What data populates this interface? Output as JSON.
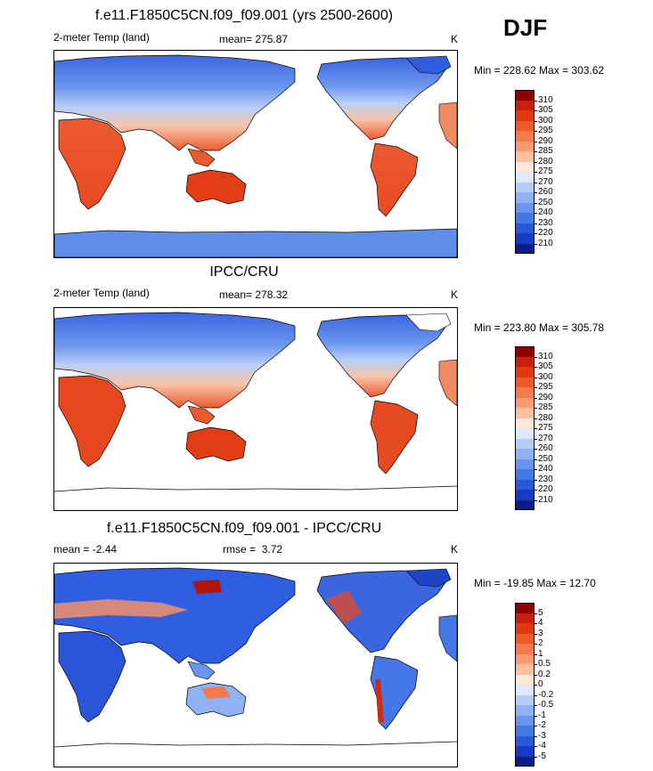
{
  "panels": [
    {
      "title": "f.e11.F1850C5CN.f09_f09.001 (yrs 2500-2600)",
      "variable": "2-meter Temp (land)",
      "stat_label": "mean=",
      "stat_value": "275.87",
      "units": "K",
      "minmax": "Min = 228.62 Max = 303.62",
      "palette": "abs",
      "has_antarctica": true
    },
    {
      "title": "IPCC/CRU",
      "variable": "2-meter Temp (land)",
      "stat_label": "mean=",
      "stat_value": "278.32",
      "units": "K",
      "minmax": "Min = 223.80 Max = 305.78",
      "palette": "abs",
      "has_antarctica": false
    },
    {
      "title": "f.e11.F1850C5CN.f09_f09.001 - IPCC/CRU",
      "variable": "mean =",
      "variable_value": "-2.44",
      "stat_label": "rmse =",
      "stat_value": "3.72",
      "units": "K",
      "minmax": "Min = -19.85 Max =  12.70",
      "palette": "diff",
      "has_antarctica": false
    }
  ],
  "season": "DJF",
  "colorbars": {
    "abs": {
      "ticks": [
        "310",
        "305",
        "300",
        "295",
        "290",
        "285",
        "280",
        "275",
        "270",
        "260",
        "250",
        "240",
        "230",
        "220",
        "210"
      ],
      "colors": [
        "#8b0000",
        "#c8200c",
        "#e03a14",
        "#f05a2a",
        "#f57a4a",
        "#f89a72",
        "#fbbfa0",
        "#fde8d8",
        "#dde8fb",
        "#b4cdf7",
        "#8fb2f2",
        "#6a95ec",
        "#4677e6",
        "#2a58d8",
        "#143bc2",
        "#0a1f8c"
      ]
    },
    "diff": {
      "ticks": [
        "5",
        "4",
        "3",
        "2",
        "1",
        "0.5",
        "0.2",
        "0",
        "-0.2",
        "-0.5",
        "-1",
        "-2",
        "-3",
        "-4",
        "-5"
      ],
      "colors": [
        "#8b0000",
        "#c8200c",
        "#e03a14",
        "#f05a2a",
        "#f57a4a",
        "#f89a72",
        "#fbbfa0",
        "#fde8d8",
        "#dde8fb",
        "#b4cdf7",
        "#8fb2f2",
        "#6a95ec",
        "#4677e6",
        "#2a58d8",
        "#143bc2",
        "#0a1f8c"
      ]
    }
  },
  "chart_data": [
    {
      "type": "heatmap",
      "title": "f.e11.F1850C5CN.f09_f09.001 (yrs 2500-2600)",
      "subtitle": "2-meter Temp (land)",
      "season": "DJF",
      "units": "K",
      "mean": 275.87,
      "min": 228.62,
      "max": 303.62,
      "colorbar_levels": [
        210,
        220,
        230,
        240,
        250,
        260,
        270,
        275,
        280,
        285,
        290,
        295,
        300,
        305,
        310
      ]
    },
    {
      "type": "heatmap",
      "title": "IPCC/CRU",
      "subtitle": "2-meter Temp (land)",
      "units": "K",
      "mean": 278.32,
      "min": 223.8,
      "max": 305.78,
      "colorbar_levels": [
        210,
        220,
        230,
        240,
        250,
        260,
        270,
        275,
        280,
        285,
        290,
        295,
        300,
        305,
        310
      ]
    },
    {
      "type": "heatmap",
      "title": "f.e11.F1850C5CN.f09_f09.001 - IPCC/CRU",
      "units": "K",
      "mean": -2.44,
      "rmse": 3.72,
      "min": -19.85,
      "max": 12.7,
      "colorbar_levels": [
        -5,
        -4,
        -3,
        -2,
        -1,
        -0.5,
        -0.2,
        0,
        0.2,
        0.5,
        1,
        2,
        3,
        4,
        5
      ]
    }
  ]
}
